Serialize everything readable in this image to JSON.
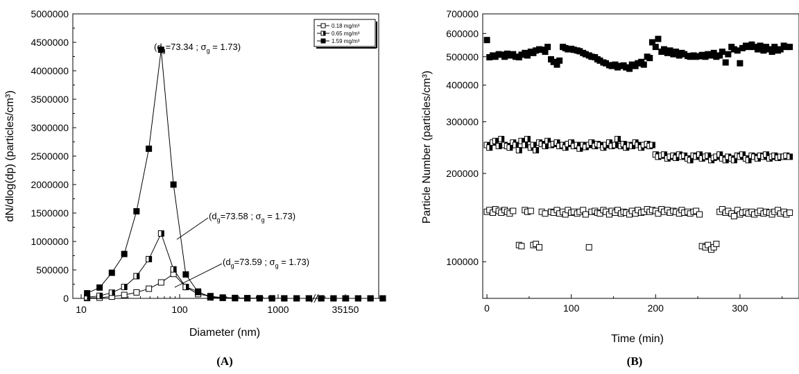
{
  "chart_data": [
    {
      "type": "line",
      "panel_label": "(A)",
      "xlabel": "Diameter (nm)",
      "ylabel": "dN/dlog(dp) (particles/cm³)",
      "xscale": "log",
      "x_tick_labels": [
        "10",
        "100",
        "1000",
        "35150"
      ],
      "ylim": [
        0,
        5000000
      ],
      "y_tick_labels": [
        "0",
        "500000",
        "1000000",
        "1500000",
        "2000000",
        "2500000",
        "3000000",
        "3500000",
        "4000000",
        "4500000",
        "5000000"
      ],
      "axis_break": true,
      "legend_position": "top-right",
      "x": [
        11.5,
        15.4,
        20.5,
        27.4,
        36.5,
        48.7,
        64.9,
        86.6,
        115.5,
        154,
        205.4,
        273.8,
        365.2,
        487,
        649.4,
        866,
        1154.9,
        1540.2,
        2054,
        2738.8,
        3652.5,
        4870.9,
        6495.5,
        8662.3,
        11551.6
      ],
      "x_after_break": [
        35150
      ],
      "series": [
        {
          "name": "0.18 mg/m³",
          "marker": "open-square",
          "values": [
            5000,
            12000,
            30000,
            60000,
            105000,
            170000,
            280000,
            430000,
            200000,
            75000,
            40000,
            8000,
            3000,
            1000,
            500,
            300,
            200,
            100,
            100,
            0,
            0,
            0,
            0,
            0,
            0
          ],
          "value_after_break": 0
        },
        {
          "name": "0.65 mg/m³",
          "marker": "half-filled-square",
          "values": [
            20000,
            45000,
            100000,
            200000,
            390000,
            690000,
            1140000,
            510000,
            200000,
            120000,
            15000,
            10000,
            5000,
            2000,
            1000,
            500,
            300,
            200,
            100,
            0,
            0,
            0,
            0,
            0,
            0
          ],
          "value_after_break": 0
        },
        {
          "name": "1.59 mg/m³",
          "marker": "filled-square",
          "values": [
            90000,
            190000,
            450000,
            780000,
            1530000,
            2630000,
            4370000,
            2000000,
            420000,
            110000,
            30000,
            15000,
            8000,
            4000,
            2000,
            1000,
            500,
            300,
            200,
            100,
            0,
            0,
            0,
            0,
            0
          ],
          "value_after_break": 0
        }
      ],
      "annotations": [
        {
          "series": "1.59 mg/m³",
          "prefix": "(d",
          "sub1": "g",
          "mid": "=73.34 ; σ",
          "sub2": "g",
          "suffix": " = 1.73)"
        },
        {
          "series": "0.65 mg/m³",
          "prefix": "(d",
          "sub1": "g",
          "mid": "=73.58 ; σ",
          "sub2": "g",
          "suffix": " = 1.73)"
        },
        {
          "series": "0.18 mg/m³",
          "prefix": "(d",
          "sub1": "g",
          "mid": "=73.59 ; σ",
          "sub2": "g",
          "suffix": " = 1.73)"
        }
      ]
    },
    {
      "type": "scatter",
      "panel_label": "(B)",
      "xlabel": "Time (min)",
      "ylabel": "Particle Number (particles/cm³)",
      "xlim": [
        -5,
        370
      ],
      "x_ticks": [
        0,
        100,
        200,
        300
      ],
      "x_tick_labels": [
        "0",
        "100",
        "200",
        "300"
      ],
      "yscale": "log",
      "ylim": [
        75000,
        700000
      ],
      "y_ticks": [
        100000,
        200000,
        300000,
        400000,
        500000,
        600000,
        700000
      ],
      "y_tick_labels": [
        "100000",
        "200000",
        "300000",
        "400000",
        "500000",
        "600000",
        "700000"
      ],
      "series": [
        {
          "marker": "filled-square",
          "x": [
            0,
            3,
            7,
            10,
            14,
            17,
            21,
            24,
            27,
            31,
            34,
            38,
            41,
            45,
            48,
            52,
            55,
            58,
            62,
            65,
            69,
            72,
            76,
            79,
            83,
            86,
            90,
            93,
            96,
            100,
            103,
            107,
            110,
            114,
            117,
            121,
            124,
            128,
            131,
            134,
            138,
            141,
            145,
            148,
            152,
            155,
            159,
            162,
            165,
            169,
            172,
            176,
            179,
            183,
            186,
            190,
            193,
            196,
            200,
            203,
            207,
            210,
            214,
            217,
            221,
            224,
            228,
            231,
            234,
            238,
            241,
            245,
            248,
            252,
            255,
            259,
            262,
            266,
            269,
            272,
            276,
            279,
            283,
            286,
            290,
            293,
            297,
            300,
            303,
            307,
            310,
            314,
            317,
            321,
            324,
            328,
            331,
            335,
            338,
            341,
            345,
            348,
            352,
            355,
            359
          ],
          "y": [
            570000,
            498000,
            505000,
            500000,
            510000,
            508000,
            500000,
            512000,
            505000,
            510000,
            500000,
            498000,
            508000,
            515000,
            505000,
            520000,
            515000,
            525000,
            530000,
            528000,
            520000,
            540000,
            490000,
            480000,
            470000,
            485000,
            540000,
            535000,
            530000,
            532000,
            528000,
            525000,
            522000,
            515000,
            510000,
            505000,
            500000,
            498000,
            490000,
            485000,
            478000,
            475000,
            468000,
            465000,
            470000,
            460000,
            465000,
            467000,
            460000,
            455000,
            470000,
            465000,
            475000,
            480000,
            470000,
            500000,
            495000,
            560000,
            540000,
            575000,
            520000,
            530000,
            515000,
            525000,
            510000,
            520000,
            505000,
            515000,
            510000,
            503000,
            500000,
            505000,
            500000,
            502000,
            507000,
            500000,
            510000,
            505000,
            515000,
            500000,
            505000,
            520000,
            478000,
            510000,
            540000,
            530000,
            525000,
            475000,
            535000,
            545000,
            540000,
            550000,
            540000,
            530000,
            545000,
            525000,
            540000,
            530000,
            520000,
            540000,
            525000,
            530000,
            545000,
            540000,
            540000
          ]
        },
        {
          "marker": "half-filled-square",
          "x": [
            0,
            3,
            7,
            10,
            14,
            17,
            21,
            24,
            27,
            31,
            34,
            38,
            41,
            45,
            48,
            52,
            55,
            58,
            62,
            65,
            69,
            72,
            76,
            79,
            83,
            86,
            90,
            93,
            96,
            100,
            103,
            107,
            110,
            114,
            117,
            121,
            124,
            128,
            131,
            134,
            138,
            141,
            145,
            148,
            152,
            155,
            159,
            162,
            165,
            169,
            172,
            176,
            179,
            183,
            186,
            190,
            193,
            196,
            200,
            203,
            207,
            210,
            214,
            217,
            221,
            224,
            228,
            231,
            234,
            238,
            241,
            245,
            248,
            252,
            255,
            259,
            262,
            266,
            269,
            272,
            276,
            279,
            283,
            286,
            290,
            293,
            297,
            300,
            303,
            307,
            310,
            314,
            317,
            321,
            324,
            328,
            331,
            335,
            338,
            341,
            345,
            348,
            352,
            355,
            359
          ],
          "y": [
            250000,
            245000,
            255000,
            258000,
            248000,
            262000,
            250000,
            248000,
            245000,
            255000,
            250000,
            240000,
            258000,
            250000,
            262000,
            245000,
            250000,
            240000,
            255000,
            252000,
            248000,
            258000,
            250000,
            252000,
            255000,
            248000,
            250000,
            245000,
            252000,
            255000,
            248000,
            250000,
            243000,
            250000,
            246000,
            250000,
            255000,
            248000,
            252000,
            250000,
            245000,
            250000,
            255000,
            248000,
            250000,
            262000,
            248000,
            252000,
            245000,
            250000,
            248000,
            255000,
            250000,
            245000,
            250000,
            252000,
            248000,
            250000,
            232000,
            228000,
            230000,
            232000,
            225000,
            228000,
            230000,
            226000,
            232000,
            228000,
            230000,
            225000,
            222000,
            230000,
            228000,
            232000,
            225000,
            228000,
            230000,
            222000,
            226000,
            228000,
            232000,
            225000,
            222000,
            228000,
            225000,
            222000,
            230000,
            228000,
            232000,
            225000,
            222000,
            230000,
            228000,
            225000,
            230000,
            228000,
            232000,
            225000,
            228000,
            230000,
            226000,
            228000,
            228000,
            230000,
            228000
          ]
        },
        {
          "marker": "open-square",
          "x": [
            0,
            3,
            7,
            10,
            14,
            17,
            21,
            24,
            27,
            31,
            38,
            41,
            45,
            48,
            52,
            55,
            58,
            62,
            65,
            69,
            76,
            79,
            83,
            86,
            90,
            93,
            96,
            100,
            103,
            107,
            110,
            114,
            117,
            121,
            124,
            128,
            131,
            134,
            138,
            141,
            145,
            148,
            152,
            155,
            159,
            162,
            165,
            169,
            172,
            176,
            179,
            183,
            186,
            190,
            193,
            196,
            200,
            203,
            207,
            210,
            214,
            217,
            221,
            224,
            228,
            231,
            234,
            238,
            241,
            245,
            248,
            252,
            255,
            259,
            262,
            266,
            269,
            272,
            276,
            279,
            283,
            286,
            290,
            293,
            297,
            300,
            303,
            307,
            310,
            314,
            317,
            321,
            324,
            328,
            331,
            335,
            338,
            341,
            345,
            348,
            352,
            355,
            359
          ],
          "y": [
            148000,
            150000,
            147000,
            151000,
            149000,
            147000,
            150000,
            148000,
            146000,
            149000,
            114000,
            113000,
            150000,
            148000,
            149000,
            114000,
            115000,
            112000,
            148000,
            146000,
            148000,
            147000,
            150000,
            146000,
            148000,
            145000,
            150000,
            147000,
            148000,
            146000,
            148000,
            150000,
            145000,
            112000,
            148000,
            149000,
            147000,
            146000,
            150000,
            148000,
            145000,
            149000,
            147000,
            150000,
            146000,
            148000,
            147000,
            145000,
            149000,
            146000,
            150000,
            147000,
            148000,
            151000,
            148000,
            150000,
            149000,
            146000,
            151000,
            148000,
            150000,
            147000,
            149000,
            148000,
            146000,
            150000,
            147000,
            148000,
            146000,
            148000,
            149000,
            145000,
            113000,
            112000,
            114000,
            110000,
            112000,
            115000,
            148000,
            151000,
            147000,
            149000,
            146000,
            143000,
            150000,
            145000,
            147000,
            148000,
            146000,
            148000,
            145000,
            147000,
            149000,
            146000,
            148000,
            147000,
            145000,
            148000,
            150000,
            146000,
            148000,
            145000,
            147000
          ]
        }
      ]
    }
  ]
}
